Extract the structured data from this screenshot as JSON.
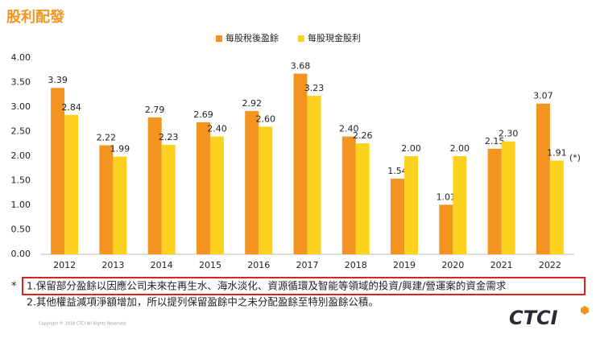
{
  "chart_data": {
    "type": "bar",
    "title": "股利配發",
    "categories": [
      "2012",
      "2013",
      "2014",
      "2015",
      "2016",
      "2017",
      "2018",
      "2019",
      "2020",
      "2021",
      "2022"
    ],
    "series": [
      {
        "name": "每股稅後盈餘",
        "color": "#f39420",
        "values": [
          3.39,
          2.22,
          2.79,
          2.69,
          2.92,
          3.68,
          2.4,
          1.54,
          1.01,
          2.15,
          3.07
        ],
        "value_labels": [
          "3.39",
          "2.22",
          "2.79",
          "2.69",
          "2.92",
          "3.68",
          "2.40",
          "1.54",
          "1.01",
          "2.15",
          "3.07"
        ]
      },
      {
        "name": "每股現金股利",
        "color": "#fdd21e",
        "values": [
          2.84,
          1.99,
          2.23,
          2.4,
          2.6,
          3.23,
          2.26,
          2.0,
          2.0,
          2.3,
          1.91
        ],
        "value_labels": [
          "2.84",
          "1.99",
          "2.23",
          "2.40",
          "2.60",
          "3.23",
          "2.26",
          "2.00",
          "2.00",
          "2.30",
          "1.91"
        ]
      }
    ],
    "ylim": [
      0,
      4
    ],
    "yticks": [
      {
        "value": 0,
        "label": "0.00"
      },
      {
        "value": 0.5,
        "label": "0.50"
      },
      {
        "value": 1,
        "label": "1.00"
      },
      {
        "value": 1.5,
        "label": "1.50"
      },
      {
        "value": 2,
        "label": "2.00"
      },
      {
        "value": 2.5,
        "label": "2.50"
      },
      {
        "value": 3,
        "label": "3.00"
      },
      {
        "value": 3.5,
        "label": "3.50"
      },
      {
        "value": 4,
        "label": "4.00"
      }
    ],
    "grid": false,
    "legend": "top",
    "annotation": "(*)"
  },
  "footnotes": {
    "marker": "*",
    "items": [
      "1.保留部分盈餘以因應公司未來在再生水、海水淡化、資源循環及智能等領域的投資/興建/營運案的資金需求",
      "2.其他權益減項淨額增加，所以提列保留盈餘中之未分配盈餘至特別盈餘公積。"
    ]
  },
  "copyright": "Copyright © 2018 CTCI All Rights Reserved.",
  "logo": "CTCI"
}
